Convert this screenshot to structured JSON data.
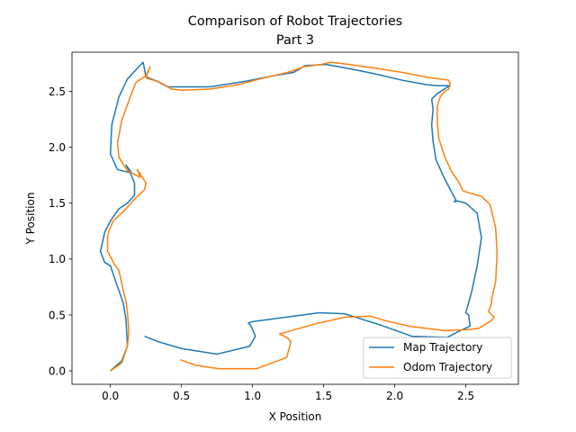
{
  "chart_data": {
    "type": "line",
    "title": "Comparison of Robot Trajectories",
    "subtitle": "Part 3",
    "xlabel": "X Position",
    "ylabel": "Y Position",
    "xlim": [
      -0.27,
      2.87
    ],
    "ylim": [
      -0.12,
      2.85
    ],
    "xticks": [
      0.0,
      0.5,
      1.0,
      1.5,
      2.0,
      2.5
    ],
    "xtick_labels": [
      "0.0",
      "0.5",
      "1.0",
      "1.5",
      "2.0",
      "2.5"
    ],
    "yticks": [
      0.0,
      0.5,
      1.0,
      1.5,
      2.0,
      2.5
    ],
    "ytick_labels": [
      "0.0",
      "0.5",
      "1.0",
      "1.5",
      "2.0",
      "2.5"
    ],
    "grid": false,
    "legend_position": "lower right",
    "series": [
      {
        "name": "Map Trajectory",
        "color": "#1f77b4",
        "points": [
          [
            0.24,
            0.31
          ],
          [
            0.34,
            0.26
          ],
          [
            0.5,
            0.2
          ],
          [
            0.75,
            0.15
          ],
          [
            0.98,
            0.22
          ],
          [
            1.02,
            0.31
          ],
          [
            0.99,
            0.4
          ],
          [
            0.97,
            0.43
          ],
          [
            1.0,
            0.44
          ],
          [
            1.23,
            0.48
          ],
          [
            1.47,
            0.52
          ],
          [
            1.65,
            0.51
          ],
          [
            1.75,
            0.47
          ],
          [
            1.9,
            0.41
          ],
          [
            2.12,
            0.31
          ],
          [
            2.37,
            0.3
          ],
          [
            2.46,
            0.36
          ],
          [
            2.53,
            0.4
          ],
          [
            2.52,
            0.5
          ],
          [
            2.5,
            0.52
          ],
          [
            2.54,
            0.7
          ],
          [
            2.58,
            0.94
          ],
          [
            2.61,
            1.19
          ],
          [
            2.58,
            1.41
          ],
          [
            2.5,
            1.5
          ],
          [
            2.44,
            1.52
          ],
          [
            2.42,
            1.51
          ],
          [
            2.43,
            1.53
          ],
          [
            2.4,
            1.6
          ],
          [
            2.35,
            1.72
          ],
          [
            2.29,
            1.89
          ],
          [
            2.27,
            2.05
          ],
          [
            2.26,
            2.2
          ],
          [
            2.27,
            2.34
          ],
          [
            2.26,
            2.43
          ],
          [
            2.3,
            2.48
          ],
          [
            2.36,
            2.53
          ],
          [
            2.39,
            2.55
          ],
          [
            2.3,
            2.55
          ],
          [
            2.22,
            2.56
          ],
          [
            2.05,
            2.6
          ],
          [
            1.85,
            2.66
          ],
          [
            1.65,
            2.71
          ],
          [
            1.52,
            2.74
          ],
          [
            1.37,
            2.73
          ],
          [
            1.29,
            2.67
          ],
          [
            1.15,
            2.64
          ],
          [
            0.95,
            2.59
          ],
          [
            0.7,
            2.54
          ],
          [
            0.5,
            2.54
          ],
          [
            0.4,
            2.54
          ],
          [
            0.33,
            2.59
          ],
          [
            0.25,
            2.63
          ],
          [
            0.24,
            2.7
          ],
          [
            0.23,
            2.76
          ],
          [
            0.2,
            2.72
          ],
          [
            0.12,
            2.61
          ],
          [
            0.06,
            2.45
          ],
          [
            0.01,
            2.2
          ],
          [
            0.0,
            1.94
          ],
          [
            0.05,
            1.8
          ],
          [
            0.15,
            1.77
          ],
          [
            0.11,
            1.84
          ],
          [
            0.14,
            1.77
          ],
          [
            0.17,
            1.68
          ],
          [
            0.17,
            1.57
          ],
          [
            0.12,
            1.5
          ],
          [
            0.06,
            1.45
          ],
          [
            0.0,
            1.34
          ],
          [
            -0.04,
            1.24
          ],
          [
            -0.07,
            1.07
          ],
          [
            -0.04,
            0.97
          ],
          [
            0.0,
            0.94
          ],
          [
            0.04,
            0.79
          ],
          [
            0.09,
            0.61
          ],
          [
            0.11,
            0.46
          ],
          [
            0.12,
            0.22
          ],
          [
            0.08,
            0.09
          ],
          [
            0.0,
            0.0
          ]
        ]
      },
      {
        "name": "Odom Trajectory",
        "color": "#ff7f0e",
        "points": [
          [
            0.49,
            0.1
          ],
          [
            0.6,
            0.05
          ],
          [
            0.76,
            0.02
          ],
          [
            1.03,
            0.02
          ],
          [
            1.24,
            0.12
          ],
          [
            1.27,
            0.26
          ],
          [
            1.24,
            0.3
          ],
          [
            1.19,
            0.33
          ],
          [
            1.44,
            0.42
          ],
          [
            1.65,
            0.48
          ],
          [
            1.83,
            0.49
          ],
          [
            1.93,
            0.45
          ],
          [
            2.1,
            0.4
          ],
          [
            2.35,
            0.36
          ],
          [
            2.52,
            0.37
          ],
          [
            2.59,
            0.38
          ],
          [
            2.68,
            0.45
          ],
          [
            2.7,
            0.48
          ],
          [
            2.66,
            0.53
          ],
          [
            2.68,
            0.6
          ],
          [
            2.68,
            0.63
          ],
          [
            2.71,
            0.8
          ],
          [
            2.72,
            1.05
          ],
          [
            2.71,
            1.28
          ],
          [
            2.67,
            1.49
          ],
          [
            2.61,
            1.56
          ],
          [
            2.53,
            1.59
          ],
          [
            2.48,
            1.61
          ],
          [
            2.45,
            1.69
          ],
          [
            2.4,
            1.78
          ],
          [
            2.35,
            1.92
          ],
          [
            2.31,
            2.08
          ],
          [
            2.3,
            2.23
          ],
          [
            2.3,
            2.37
          ],
          [
            2.32,
            2.45
          ],
          [
            2.35,
            2.5
          ],
          [
            2.38,
            2.52
          ],
          [
            2.39,
            2.57
          ],
          [
            2.38,
            2.6
          ],
          [
            2.26,
            2.62
          ],
          [
            2.05,
            2.67
          ],
          [
            1.85,
            2.71
          ],
          [
            1.68,
            2.74
          ],
          [
            1.55,
            2.76
          ],
          [
            1.48,
            2.74
          ],
          [
            1.36,
            2.72
          ],
          [
            1.25,
            2.67
          ],
          [
            1.08,
            2.62
          ],
          [
            0.9,
            2.56
          ],
          [
            0.7,
            2.52
          ],
          [
            0.5,
            2.51
          ],
          [
            0.43,
            2.52
          ],
          [
            0.35,
            2.58
          ],
          [
            0.25,
            2.62
          ],
          [
            0.27,
            2.69
          ],
          [
            0.28,
            2.72
          ],
          [
            0.25,
            2.64
          ],
          [
            0.18,
            2.58
          ],
          [
            0.14,
            2.45
          ],
          [
            0.08,
            2.24
          ],
          [
            0.05,
            2.04
          ],
          [
            0.06,
            1.91
          ],
          [
            0.12,
            1.79
          ],
          [
            0.21,
            1.73
          ],
          [
            0.19,
            1.8
          ],
          [
            0.21,
            1.76
          ],
          [
            0.25,
            1.68
          ],
          [
            0.24,
            1.62
          ],
          [
            0.18,
            1.55
          ],
          [
            0.11,
            1.45
          ],
          [
            0.02,
            1.34
          ],
          [
            -0.01,
            1.25
          ],
          [
            -0.02,
            1.2
          ],
          [
            -0.02,
            1.07
          ],
          [
            0.03,
            0.95
          ],
          [
            0.06,
            0.9
          ],
          [
            0.09,
            0.72
          ],
          [
            0.11,
            0.62
          ],
          [
            0.12,
            0.52
          ],
          [
            0.13,
            0.35
          ],
          [
            0.12,
            0.22
          ],
          [
            0.08,
            0.07
          ],
          [
            0.0,
            0.0
          ]
        ]
      }
    ]
  }
}
